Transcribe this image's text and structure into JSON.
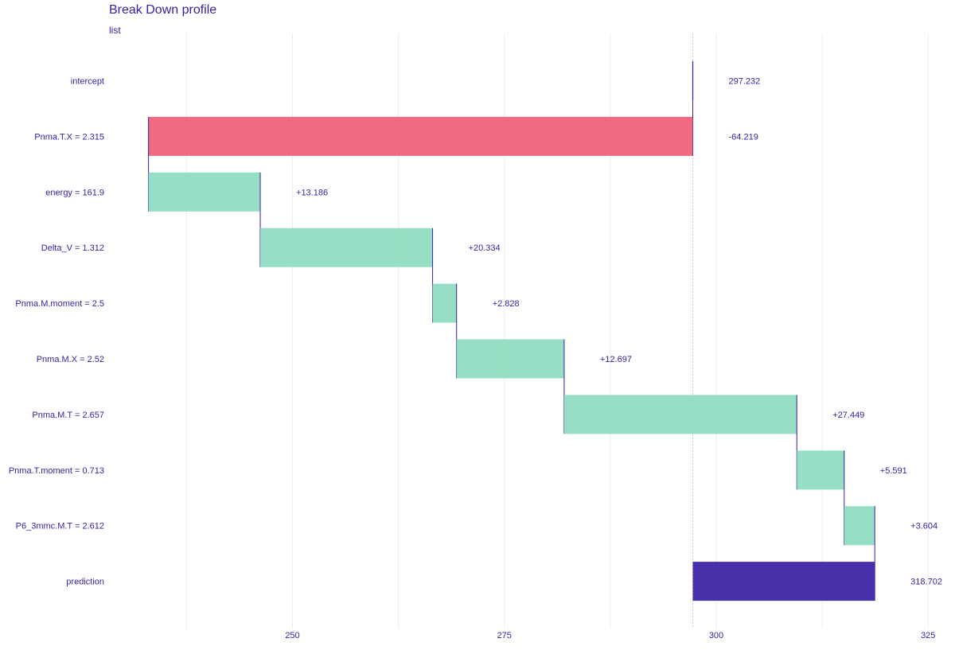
{
  "chart_data": {
    "type": "waterfall",
    "title": "Break Down profile",
    "subtitle": "list",
    "xlabel": "",
    "ylabel": "",
    "xlim": [
      227,
      327
    ],
    "x_ticks": [
      250,
      275,
      300,
      325
    ],
    "grid": true,
    "baseline": 297.232,
    "colors": {
      "title": "#371ea3",
      "text": "#371ea3",
      "positive": "#8bdcbe",
      "negative": "#f05a71",
      "prediction": "#371ea3",
      "connector": "#371ea3",
      "baseline": "#c8bff0",
      "grid": "#ececec"
    },
    "rows": [
      {
        "variable": "intercept",
        "contribution": 297.232,
        "label": "297.232",
        "kind": "intercept"
      },
      {
        "variable": "Pnma.T.X = 2.315",
        "contribution": -64.219,
        "label": "-64.219",
        "kind": "negative"
      },
      {
        "variable": "energy = 161.9",
        "contribution": 13.186,
        "label": "+13.186",
        "kind": "positive"
      },
      {
        "variable": "Delta_V = 1.312",
        "contribution": 20.334,
        "label": "+20.334",
        "kind": "positive"
      },
      {
        "variable": "Pnma.M.moment = 2.5",
        "contribution": 2.828,
        "label": "+2.828",
        "kind": "positive"
      },
      {
        "variable": "Pnma.M.X = 2.52",
        "contribution": 12.697,
        "label": "+12.697",
        "kind": "positive"
      },
      {
        "variable": "Pnma.M.T = 2.657",
        "contribution": 27.449,
        "label": "+27.449",
        "kind": "positive"
      },
      {
        "variable": "Pnma.T.moment = 0.713",
        "contribution": 5.591,
        "label": "+5.591",
        "kind": "positive"
      },
      {
        "variable": "P6_3mmc.M.T = 2.612",
        "contribution": 3.604,
        "label": "+3.604",
        "kind": "positive"
      },
      {
        "variable": "prediction",
        "contribution": 318.702,
        "label": "318.702",
        "kind": "prediction"
      }
    ]
  }
}
